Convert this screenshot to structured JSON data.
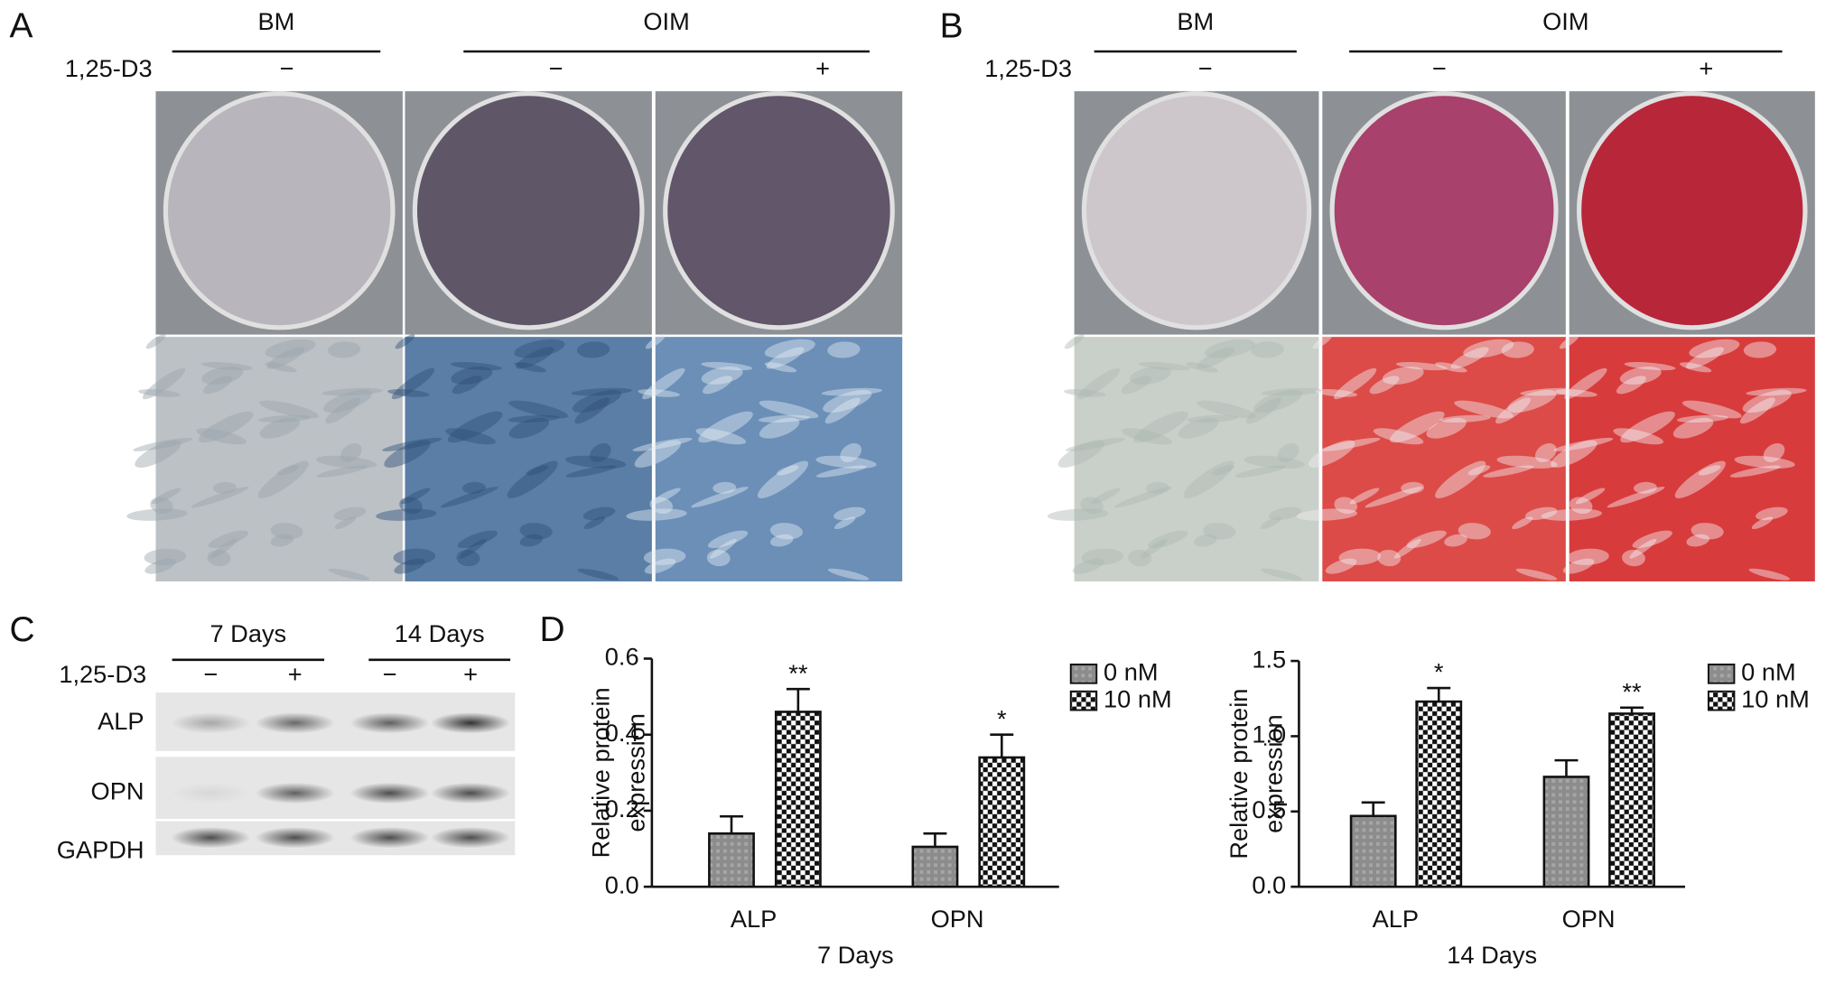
{
  "panels": [
    {
      "label": "A",
      "groups": [
        "BM",
        "OIM"
      ],
      "treatment": "1,25-D3",
      "signs": [
        "−",
        "−",
        "+"
      ]
    },
    {
      "label": "B",
      "groups": [
        "BM",
        "OIM"
      ],
      "treatment": "1,25-D3",
      "signs": [
        "−",
        "−",
        "+"
      ]
    }
  ],
  "blot": {
    "label": "C",
    "groups": [
      "7 Days",
      "14 Days"
    ],
    "treatment": "1,25-D3",
    "signs": [
      "−",
      "+",
      "−",
      "+"
    ],
    "rows": [
      "ALP",
      "OPN",
      "GAPDH"
    ]
  },
  "chart_panel_label": "D",
  "chart_data": [
    {
      "type": "bar",
      "ylabel": [
        "Relative protein",
        "expression"
      ],
      "xlabel": "7 Days",
      "categories": [
        "ALP",
        "OPN"
      ],
      "series": [
        {
          "name": "0 nM",
          "color": "#8c8c8c",
          "values": [
            0.14,
            0.105
          ],
          "errors": [
            0.045,
            0.035
          ]
        },
        {
          "name": "10 nM",
          "color": "#000000",
          "values": [
            0.46,
            0.34
          ],
          "errors": [
            0.06,
            0.06
          ],
          "annotations": [
            "**",
            "*"
          ]
        }
      ],
      "ylim": [
        0,
        0.6
      ],
      "yticks": [
        {
          "value": 0,
          "label": "0.0"
        },
        0.2,
        0.4,
        0.6
      ],
      "legend": "right"
    },
    {
      "type": "bar",
      "ylabel": [
        "Relative protein",
        "expression"
      ],
      "xlabel": "14 Days",
      "categories": [
        "ALP",
        "OPN"
      ],
      "series": [
        {
          "name": "0 nM",
          "color": "#8c8c8c",
          "values": [
            0.47,
            0.73
          ],
          "errors": [
            0.09,
            0.11
          ]
        },
        {
          "name": "10 nM",
          "color": "#000000",
          "values": [
            1.23,
            1.15
          ],
          "errors": [
            0.09,
            0.04
          ],
          "annotations": [
            "*",
            "**"
          ]
        }
      ],
      "ylim": [
        0,
        1.5
      ],
      "yticks": [
        {
          "value": 0,
          "label": "0.0"
        },
        0.5,
        {
          "value": 1,
          "label": "1.0"
        },
        1.5
      ],
      "legend": "right"
    }
  ]
}
